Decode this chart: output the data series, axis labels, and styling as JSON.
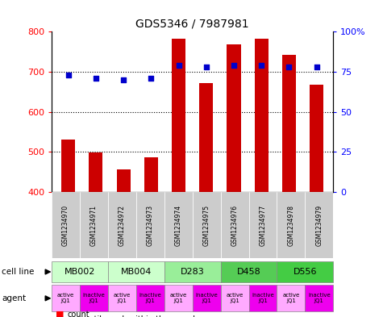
{
  "title": "GDS5346 / 7987981",
  "samples": [
    "GSM1234970",
    "GSM1234971",
    "GSM1234972",
    "GSM1234973",
    "GSM1234974",
    "GSM1234975",
    "GSM1234976",
    "GSM1234977",
    "GSM1234978",
    "GSM1234979"
  ],
  "counts": [
    530,
    498,
    455,
    487,
    782,
    672,
    768,
    782,
    742,
    667
  ],
  "percentile_ranks": [
    73,
    71,
    70,
    71,
    79,
    78,
    79,
    79,
    78,
    78
  ],
  "ylim_left": [
    400,
    800
  ],
  "ylim_right": [
    0,
    100
  ],
  "yticks_left": [
    400,
    500,
    600,
    700,
    800
  ],
  "yticks_right": [
    0,
    25,
    50,
    75,
    100
  ],
  "bar_color": "#cc0000",
  "dot_color": "#0000cc",
  "bar_width": 0.5,
  "cell_line_groups": [
    {
      "label": "MB002",
      "cols": [
        0,
        1
      ],
      "color": "#ccffcc"
    },
    {
      "label": "MB004",
      "cols": [
        2,
        3
      ],
      "color": "#ccffcc"
    },
    {
      "label": "D283",
      "cols": [
        4,
        5
      ],
      "color": "#99ee99"
    },
    {
      "label": "D458",
      "cols": [
        6,
        7
      ],
      "color": "#55cc55"
    },
    {
      "label": "D556",
      "cols": [
        8,
        9
      ],
      "color": "#44cc44"
    }
  ],
  "agent_data": [
    {
      "label": "active\nJQ1",
      "col": 0,
      "color": "#ffaaff"
    },
    {
      "label": "inactive\nJQ1",
      "col": 1,
      "color": "#ee00ee"
    },
    {
      "label": "active\nJQ1",
      "col": 2,
      "color": "#ffaaff"
    },
    {
      "label": "inactive\nJQ1",
      "col": 3,
      "color": "#ee00ee"
    },
    {
      "label": "active\nJQ1",
      "col": 4,
      "color": "#ffaaff"
    },
    {
      "label": "inactive\nJQ1",
      "col": 5,
      "color": "#ee00ee"
    },
    {
      "label": "active\nJQ1",
      "col": 6,
      "color": "#ffaaff"
    },
    {
      "label": "inactive\nJQ1",
      "col": 7,
      "color": "#ee00ee"
    },
    {
      "label": "active\nJQ1",
      "col": 8,
      "color": "#ffaaff"
    },
    {
      "label": "inactive\nJQ1",
      "col": 9,
      "color": "#ee00ee"
    }
  ],
  "sample_col_color": "#cccccc"
}
